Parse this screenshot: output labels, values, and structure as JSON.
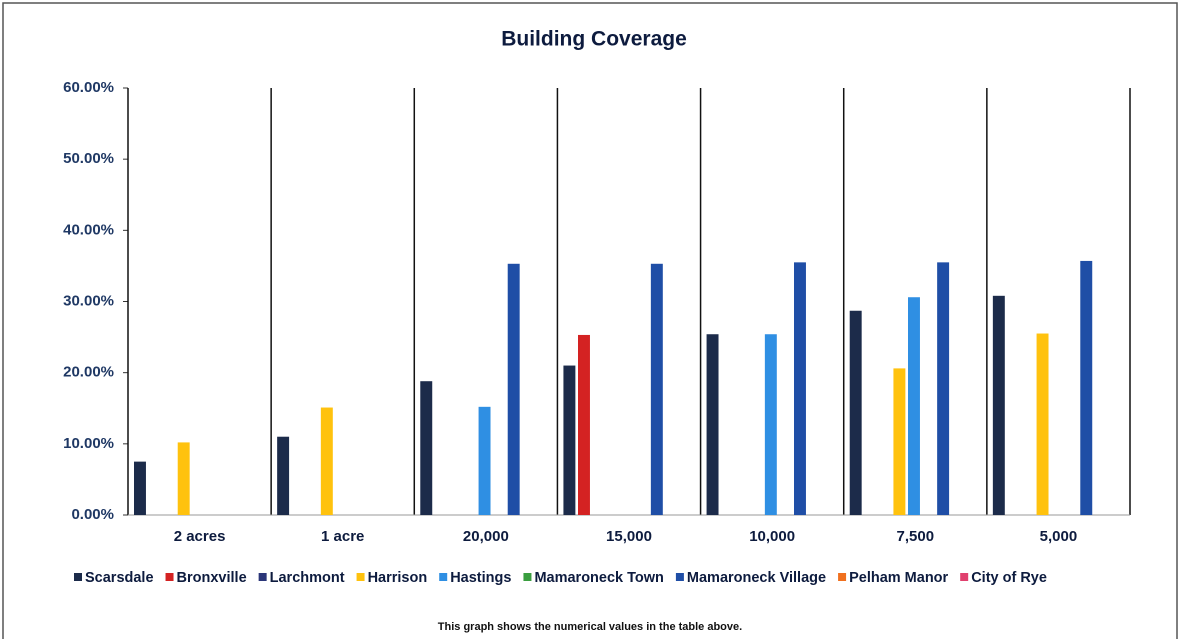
{
  "chart_data": {
    "type": "bar",
    "title": "Building Coverage",
    "note": "This graph shows the numerical values in the table above.",
    "categories": [
      "2 acres",
      "1 acre",
      "20,000",
      "15,000",
      "10,000",
      "7,500",
      "5,000"
    ],
    "series": [
      {
        "name": "Scarsdale",
        "color": "#1c2b4a",
        "values": [
          7.5,
          11,
          18.8,
          21,
          25.4,
          28.7,
          30.8
        ]
      },
      {
        "name": "Bronxville",
        "color": "#d42222",
        "values": [
          null,
          null,
          null,
          25.3,
          null,
          null,
          null
        ]
      },
      {
        "name": "Larchmont",
        "color": "#2b3679",
        "values": [
          null,
          null,
          null,
          null,
          null,
          null,
          null
        ]
      },
      {
        "name": "Harrison",
        "color": "#ffc20e",
        "values": [
          10.2,
          15.1,
          null,
          null,
          null,
          20.6,
          25.5
        ]
      },
      {
        "name": "Hastings",
        "color": "#2f8fe3",
        "values": [
          null,
          null,
          15.2,
          null,
          25.4,
          30.6,
          null
        ]
      },
      {
        "name": "Mamaroneck Town",
        "color": "#3a9e3f",
        "values": [
          null,
          null,
          null,
          null,
          null,
          null,
          null
        ]
      },
      {
        "name": "Mamaroneck Village",
        "color": "#1f4ea6",
        "values": [
          null,
          null,
          35.3,
          35.3,
          35.5,
          35.5,
          35.7
        ]
      },
      {
        "name": "Pelham Manor",
        "color": "#f0701e",
        "values": [
          null,
          null,
          null,
          null,
          null,
          null,
          null
        ]
      },
      {
        "name": "City of Rye",
        "color": "#e0406e",
        "values": [
          null,
          null,
          null,
          null,
          null,
          null,
          null
        ]
      }
    ],
    "ylim": [
      0,
      60
    ],
    "yticks": [
      {
        "value": 0,
        "label": "0.00%"
      },
      {
        "value": 10,
        "label": "10.00%"
      },
      {
        "value": 20,
        "label": "20.00%"
      },
      {
        "value": 30,
        "label": "30.00%"
      },
      {
        "value": 40,
        "label": "40.00%"
      },
      {
        "value": 50,
        "label": "50.00%"
      },
      {
        "value": 60,
        "label": "60.00%"
      }
    ]
  }
}
